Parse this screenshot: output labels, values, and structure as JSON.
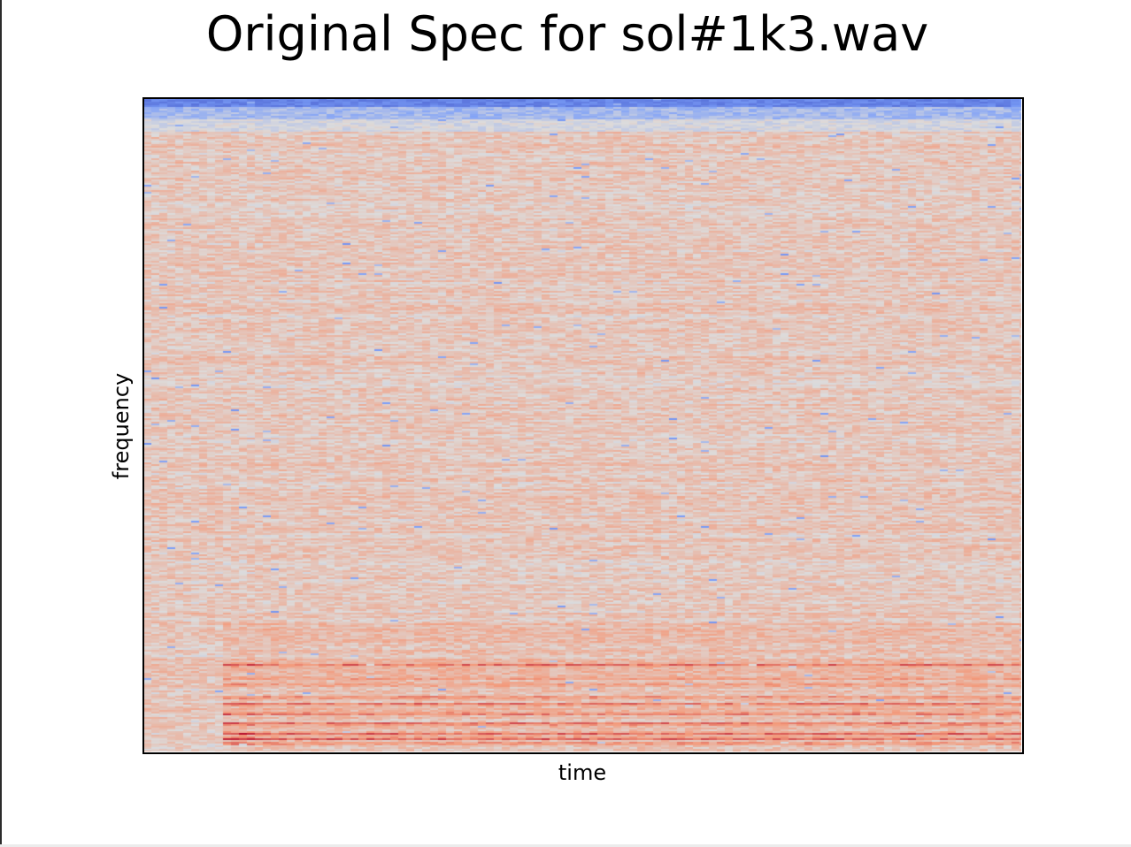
{
  "chart_data": {
    "type": "heatmap",
    "title": "Original Spec for sol#1k3.wav",
    "xlabel": "time",
    "ylabel": "frequency",
    "colormap": "coolwarm",
    "colormap_colors": [
      "#3b4cc0",
      "#dddcdc",
      "#b40426"
    ],
    "background_level": "light orange-pink noise across all frequencies",
    "low_freq_band_at_top_of_display": "dark blue (lowest energy)",
    "harmonic_bands": "strong red horizontal harmonics near the bottom of the plot starting shortly after the beginning in time and sustaining to the end",
    "grid": false,
    "legend": "none"
  }
}
